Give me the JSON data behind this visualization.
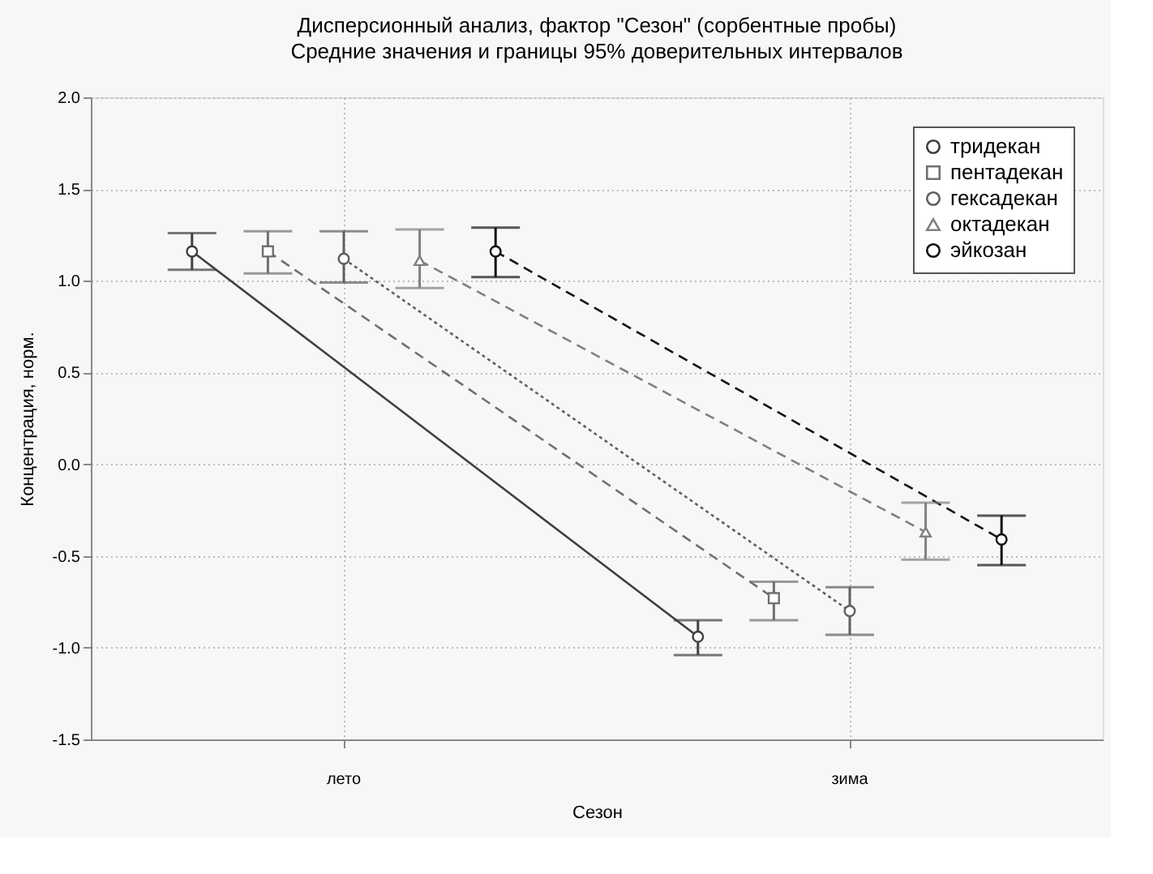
{
  "chart_data": {
    "type": "line",
    "title": "Дисперсионный анализ, фактор \"Сезон\" (сорбентные пробы)",
    "subtitle": "Средние значения и границы 95% доверительных интервалов",
    "xlabel": "Сезон",
    "ylabel": "Концентрация, норм.",
    "categories": [
      "лето",
      "зима"
    ],
    "series": [
      {
        "name": "тридекан",
        "color": "#404040",
        "values": [
          1.16,
          -0.94
        ],
        "errors": [
          [
            1.06,
            1.26
          ],
          [
            -1.04,
            -0.85
          ]
        ],
        "marker": "circle",
        "line_style": "solid"
      },
      {
        "name": "пентадекан",
        "color": "#707070",
        "values": [
          1.16,
          -0.73
        ],
        "errors": [
          [
            1.04,
            1.27
          ],
          [
            -0.85,
            -0.64
          ]
        ],
        "marker": "square",
        "line_style": "dashed"
      },
      {
        "name": "гексадекан",
        "color": "#606060",
        "values": [
          1.12,
          -0.8
        ],
        "errors": [
          [
            0.99,
            1.27
          ],
          [
            -0.93,
            -0.67
          ]
        ],
        "marker": "circle",
        "line_style": "dotted"
      },
      {
        "name": "октадекан",
        "color": "#808080",
        "values": [
          1.11,
          -0.37
        ],
        "errors": [
          [
            0.96,
            1.28
          ],
          [
            -0.52,
            -0.21
          ]
        ],
        "marker": "triangle",
        "line_style": "dashed"
      },
      {
        "name": "эйкозан",
        "color": "#111111",
        "values": [
          1.16,
          -0.41
        ],
        "errors": [
          [
            1.02,
            1.29
          ],
          [
            -0.55,
            -0.28
          ]
        ],
        "marker": "circle",
        "line_style": "dashed"
      }
    ],
    "ylim": [
      -1.5,
      2.0
    ],
    "yticks": [
      {
        "value": -1.5,
        "label": "-1.5"
      },
      {
        "value": -1.0,
        "label": "-1.0"
      },
      {
        "value": -0.5,
        "label": "-0.5"
      },
      {
        "value": 0.0,
        "label": "0.0"
      },
      {
        "value": 0.5,
        "label": "0.5"
      },
      {
        "value": 1.0,
        "label": "1.0"
      },
      {
        "value": 1.5,
        "label": "1.5"
      },
      {
        "value": 2.0,
        "label": "2.0"
      }
    ],
    "grid": true,
    "legend": "top right"
  }
}
